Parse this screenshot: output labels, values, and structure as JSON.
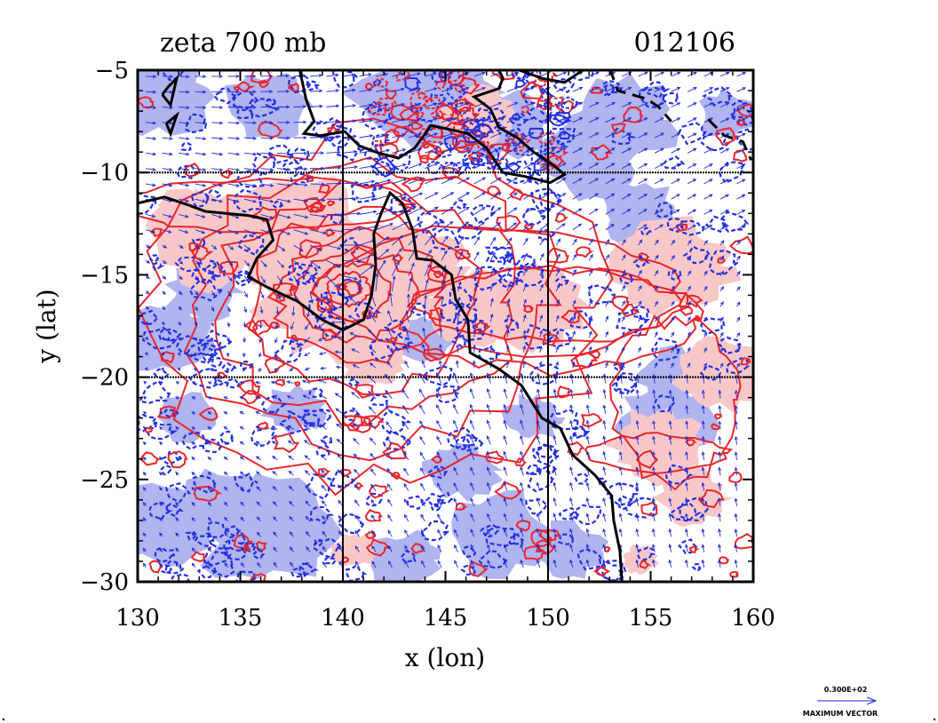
{
  "chart_data": {
    "type": "contour",
    "title": "zeta 700 mb",
    "timestamp": "012106",
    "xlabel": "x (lon)",
    "ylabel": "y (lat)",
    "xlim": [
      130,
      160
    ],
    "ylim": [
      -30,
      -5
    ],
    "x_ticks": [
      130,
      135,
      140,
      145,
      150,
      155,
      160
    ],
    "y_ticks": [
      -5,
      -10,
      -15,
      -20,
      -25,
      -30
    ],
    "x_tick_labels": [
      "130",
      "135",
      "140",
      "145",
      "150",
      "155",
      "160"
    ],
    "y_tick_labels": [
      "−5",
      "−10",
      "−15",
      "−20",
      "−25",
      "−30"
    ],
    "grid_lines": {
      "lon": [
        140,
        150
      ],
      "lat": [
        -10,
        -20
      ]
    },
    "vortex_center": {
      "lon": 140.3,
      "lat": -15.7
    },
    "positive_color": "#e8262d",
    "positive_fill": "#f8c8c8",
    "negative_color": "#2430e0",
    "negative_fill": "#b0b4ef",
    "coast_color": "#000000",
    "vector_color": "#1f2ad8",
    "vector_legend": {
      "value": "0.300E+02",
      "caption": "MAXIMUM VECTOR"
    }
  }
}
